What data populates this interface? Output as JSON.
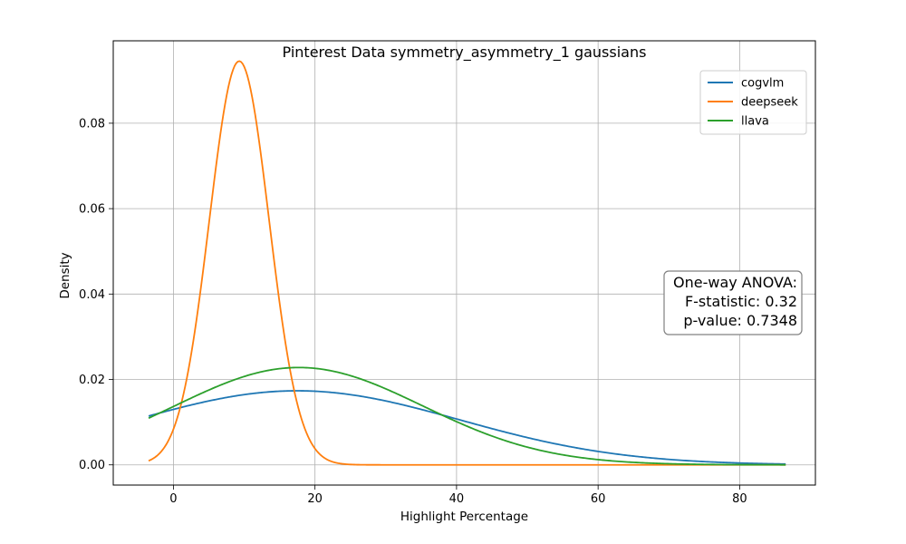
{
  "chart_data": {
    "type": "line",
    "title": "Pinterest Data symmetry_asymmetry_1 gaussians",
    "xlabel": "Highlight Percentage",
    "ylabel": "Density",
    "xlim": [
      -8.5,
      90.7
    ],
    "ylim": [
      -0.00473,
      0.0993
    ],
    "x_ticks": [
      0,
      20,
      40,
      60,
      80
    ],
    "y_ticks": [
      0.0,
      0.02,
      0.04,
      0.06,
      0.08
    ],
    "x_tick_labels": [
      "0",
      "20",
      "40",
      "60",
      "80"
    ],
    "y_tick_labels": [
      "0.00",
      "0.02",
      "0.04",
      "0.06",
      "0.08"
    ],
    "grid": true,
    "legend_position": "top-right",
    "x_range": [
      -3.5,
      86.5
    ],
    "series": [
      {
        "name": "cogvlm",
        "color": "#1f77b4",
        "distribution": "gaussian",
        "mean": 17.5,
        "std": 23.0
      },
      {
        "name": "deepseek",
        "color": "#ff7f0e",
        "distribution": "gaussian",
        "mean": 9.3,
        "std": 4.22
      },
      {
        "name": "llava",
        "color": "#2ca02c",
        "distribution": "gaussian",
        "mean": 17.7,
        "std": 17.5
      }
    ],
    "annotation": {
      "lines": [
        "One-way ANOVA:",
        "F-statistic: 0.32",
        "p-value: 0.7348"
      ],
      "position": "right"
    }
  }
}
